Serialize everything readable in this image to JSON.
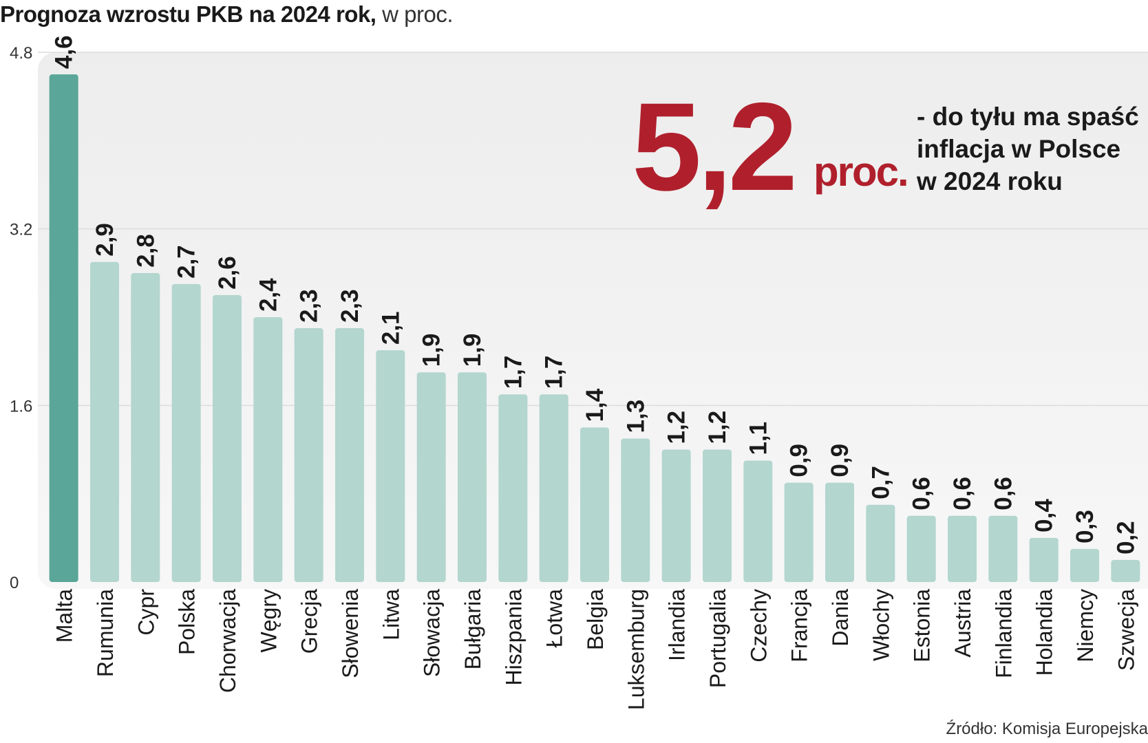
{
  "header": {
    "title_bold": "Prognoza wzrostu PKB na 2024 rok,",
    "title_light": "w proc."
  },
  "callout": {
    "value": "5,2",
    "unit": "proc.",
    "line1": "- do tyłu ma spaść",
    "line2": "inflacja w Polsce",
    "line3": "w 2024 roku"
  },
  "source": "Źródło: Komisja Europejska",
  "colors": {
    "highlight_bar": "#5aa698",
    "bar": "#b3d6cf",
    "callout": "#b0202c",
    "plot_background": "#ececec"
  },
  "chart_data": {
    "type": "bar",
    "orientation": "vertical",
    "categories": [
      "Malta",
      "Rumunia",
      "Cypr",
      "Polska",
      "Chorwacja",
      "Węgry",
      "Grecja",
      "Słowenia",
      "Litwa",
      "Słowacja",
      "Bułgaria",
      "Hiszpania",
      "Łotwa",
      "Belgia",
      "Luksemburg",
      "Irlandia",
      "Portugalia",
      "Czechy",
      "Francja",
      "Dania",
      "Włochy",
      "Estonia",
      "Austria",
      "Finlandia",
      "Holandia",
      "Niemcy",
      "Szwecja"
    ],
    "values": [
      4.6,
      2.9,
      2.8,
      2.7,
      2.6,
      2.4,
      2.3,
      2.3,
      2.1,
      1.9,
      1.9,
      1.7,
      1.7,
      1.4,
      1.3,
      1.2,
      1.2,
      1.1,
      0.9,
      0.9,
      0.7,
      0.6,
      0.6,
      0.6,
      0.4,
      0.3,
      0.2
    ],
    "value_labels": [
      "4,6",
      "2,9",
      "2,8",
      "2,7",
      "2,6",
      "2,4",
      "2,3",
      "2,3",
      "2,1",
      "1,9",
      "1,9",
      "1,7",
      "1,7",
      "1,4",
      "1,3",
      "1,2",
      "1,2",
      "1,1",
      "0,9",
      "0,9",
      "0,7",
      "0,6",
      "0,6",
      "0,6",
      "0,4",
      "0,3",
      "0,2"
    ],
    "highlight": "Malta",
    "yticks": [
      "0",
      "1.6",
      "3.2",
      "4.8"
    ],
    "ylim": [
      0,
      4.8
    ],
    "grid": true,
    "xlabel": "",
    "ylabel": ""
  }
}
